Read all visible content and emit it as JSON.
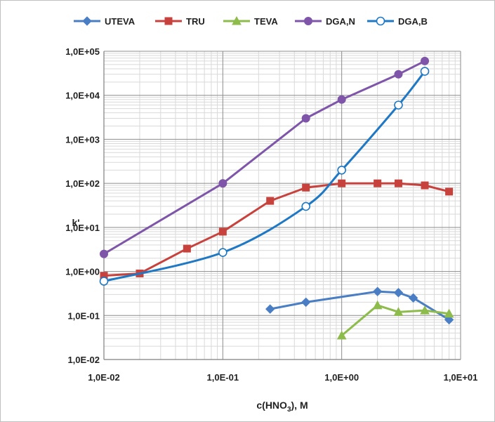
{
  "chart_data": {
    "type": "line",
    "title": "",
    "xlabel": "c(HNO3), M",
    "xlabel_main": "c(HNO",
    "xlabel_sub": "3",
    "xlabel_tail": "), M",
    "ylabel": "k'",
    "x_scale": "log",
    "y_scale": "log",
    "xlim": [
      0.01,
      10
    ],
    "ylim": [
      0.01,
      100000
    ],
    "grid": true,
    "legend_position": "top",
    "x_ticks": [
      {
        "value": 0.01,
        "label": "1,0E-02"
      },
      {
        "value": 0.1,
        "label": "1,0E-01"
      },
      {
        "value": 1,
        "label": "1,0E+00"
      },
      {
        "value": 10,
        "label": "1,0E+01"
      }
    ],
    "y_ticks": [
      {
        "value": 0.01,
        "label": "1,0E-02"
      },
      {
        "value": 0.1,
        "label": "1,0E-01"
      },
      {
        "value": 1,
        "label": "1,0E+00"
      },
      {
        "value": 10,
        "label": "1,0E+01"
      },
      {
        "value": 100,
        "label": "1,0E+02"
      },
      {
        "value": 1000,
        "label": "1,0E+03"
      },
      {
        "value": 10000,
        "label": "1,0E+04"
      },
      {
        "value": 100000,
        "label": "1,0E+05"
      }
    ],
    "series": [
      {
        "name": "UTEVA",
        "color": "#4A7EC4",
        "marker": "diamond",
        "smooth": false,
        "x": [
          0.25,
          0.5,
          2,
          3,
          4,
          8
        ],
        "y": [
          0.14,
          0.2,
          0.35,
          0.33,
          0.25,
          0.08
        ]
      },
      {
        "name": "TRU",
        "color": "#C8423D",
        "marker": "square",
        "smooth": false,
        "x": [
          0.01,
          0.02,
          0.05,
          0.1,
          0.25,
          0.5,
          1,
          2,
          3,
          5,
          8
        ],
        "y": [
          0.8,
          0.9,
          3.3,
          8,
          40,
          80,
          100,
          100,
          100,
          90,
          65
        ]
      },
      {
        "name": "TEVA",
        "color": "#8DBB4C",
        "marker": "triangle",
        "smooth": false,
        "x": [
          1,
          2,
          3,
          5,
          8
        ],
        "y": [
          0.035,
          0.17,
          0.12,
          0.13,
          0.11
        ]
      },
      {
        "name": "DGA,N",
        "color": "#7E55A8",
        "marker": "circle",
        "smooth": false,
        "x": [
          0.01,
          0.1,
          0.5,
          1,
          3,
          5
        ],
        "y": [
          2.5,
          100,
          3000,
          8000,
          30000,
          60000
        ]
      },
      {
        "name": "DGA,B",
        "color": "#1F78C4",
        "marker": "open-circle",
        "smooth": true,
        "x": [
          0.01,
          0.1,
          0.5,
          1,
          3,
          5
        ],
        "y": [
          0.6,
          2.7,
          30,
          200,
          6000,
          35000
        ]
      }
    ]
  }
}
